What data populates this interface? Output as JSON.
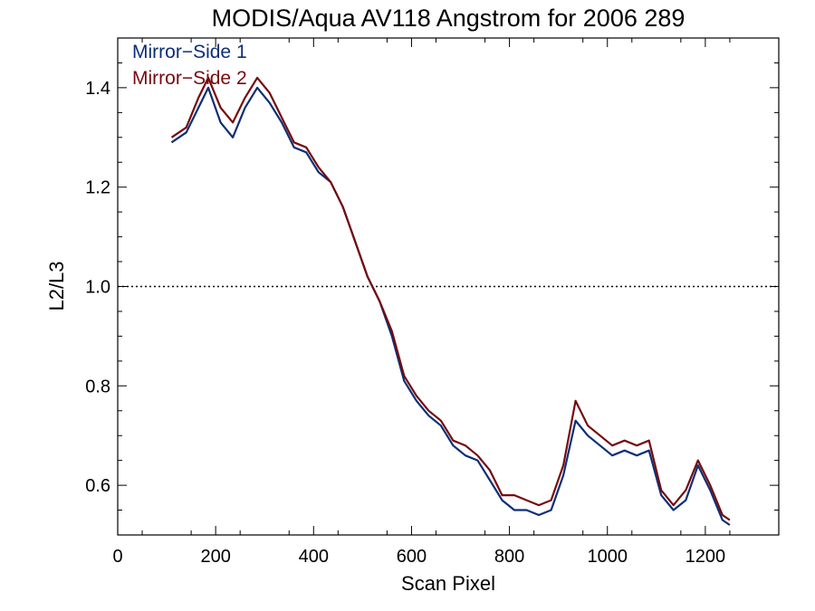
{
  "chart_data": {
    "type": "line",
    "title": "MODIS/Aqua AV118 Angstrom for 2006 289",
    "xlabel": "Scan Pixel",
    "ylabel": "L2/L3",
    "xlim": [
      0,
      1350
    ],
    "ylim": [
      0.5,
      1.5
    ],
    "x_ticks": [
      0,
      200,
      400,
      600,
      800,
      1000,
      1200
    ],
    "y_ticks": [
      0.6,
      0.8,
      1.0,
      1.2,
      1.4
    ],
    "x_tick_labels": [
      "0",
      "200",
      "400",
      "600",
      "800",
      "1000",
      "1200"
    ],
    "y_tick_labels": [
      "0.6",
      "0.8",
      "1.0",
      "1.2",
      "1.4"
    ],
    "reference_line": {
      "y": 1.0,
      "style": "dotted"
    },
    "legend": {
      "placement": "top-left"
    },
    "grid": false,
    "x": [
      110,
      140,
      165,
      185,
      210,
      235,
      260,
      285,
      310,
      335,
      360,
      385,
      410,
      435,
      460,
      485,
      510,
      535,
      560,
      585,
      610,
      635,
      660,
      685,
      710,
      735,
      760,
      785,
      810,
      835,
      860,
      885,
      910,
      935,
      960,
      985,
      1010,
      1035,
      1060,
      1085,
      1110,
      1135,
      1160,
      1185,
      1210,
      1235,
      1250
    ],
    "series": [
      {
        "name": "Mirror−Side 1",
        "color": "#0b2f75",
        "values": [
          1.29,
          1.31,
          1.36,
          1.4,
          1.33,
          1.3,
          1.36,
          1.4,
          1.37,
          1.33,
          1.28,
          1.27,
          1.23,
          1.21,
          1.16,
          1.09,
          1.02,
          0.97,
          0.9,
          0.81,
          0.77,
          0.74,
          0.72,
          0.68,
          0.66,
          0.65,
          0.61,
          0.57,
          0.55,
          0.55,
          0.54,
          0.55,
          0.62,
          0.73,
          0.7,
          0.68,
          0.66,
          0.67,
          0.66,
          0.67,
          0.58,
          0.55,
          0.57,
          0.64,
          0.59,
          0.53,
          0.52
        ]
      },
      {
        "name": "Mirror−Side 2",
        "color": "#750b0f",
        "values": [
          1.3,
          1.32,
          1.38,
          1.42,
          1.36,
          1.33,
          1.38,
          1.42,
          1.39,
          1.34,
          1.29,
          1.28,
          1.24,
          1.21,
          1.16,
          1.09,
          1.02,
          0.97,
          0.91,
          0.82,
          0.78,
          0.75,
          0.73,
          0.69,
          0.68,
          0.66,
          0.63,
          0.58,
          0.58,
          0.57,
          0.56,
          0.57,
          0.64,
          0.77,
          0.72,
          0.7,
          0.68,
          0.69,
          0.68,
          0.69,
          0.59,
          0.56,
          0.59,
          0.65,
          0.6,
          0.54,
          0.53
        ]
      }
    ]
  }
}
